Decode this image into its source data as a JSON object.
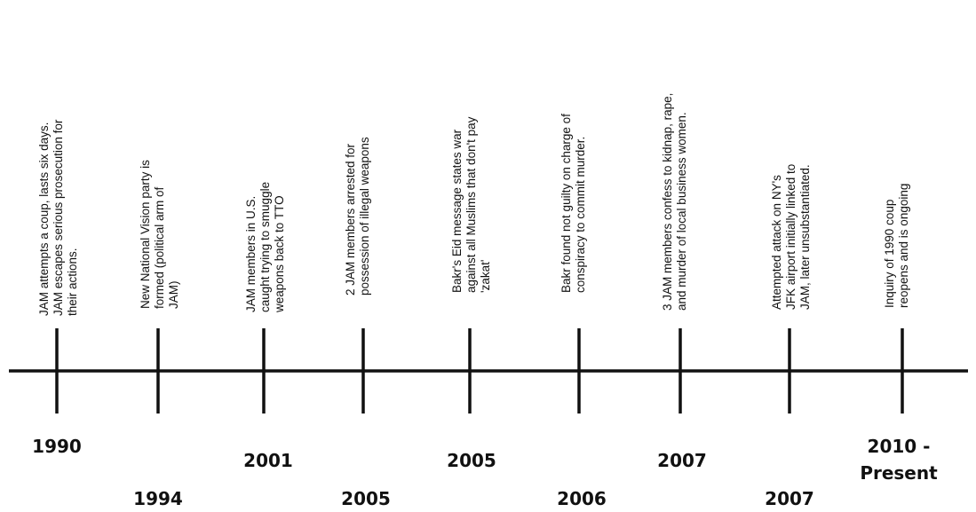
{
  "events": [
    {
      "year": "1990",
      "lines": [
        "JAM  attempts a coup, lasts six days.",
        "JAM escapes serious prosecution for",
        "their actions."
      ]
    },
    {
      "year": "1994",
      "lines": [
        "New National Vision party is",
        "formed (political arm of",
        "JAM)"
      ]
    },
    {
      "year": "2001",
      "lines": [
        "JAM members in U.S.",
        "caught trying to smuggle",
        "weapons back to TTO"
      ]
    },
    {
      "year": "2005",
      "lines": [
        "2 JAM members arrested for",
        "possession of illegal weapons"
      ]
    },
    {
      "year": "2005",
      "lines": [
        "Bakr's Eid message states war",
        "against all Muslims that don't pay",
        "'zakat'"
      ]
    },
    {
      "year": "2006",
      "lines": [
        "Bakr found not guilty on charge of",
        "conspiracy to commit murder."
      ]
    },
    {
      "year": "2007",
      "lines": [
        "3 JAM members confess to kidnap, rape,",
        "and murder of local business women."
      ]
    },
    {
      "year": "2007",
      "lines": [
        "Attempted attack on NY's",
        "JFK airport initially linked to",
        "JAM, later unsubstantiated."
      ]
    },
    {
      "year_lines": [
        "2010 -",
        "Present"
      ],
      "lines": [
        "Inquiry of 1990 coup",
        "reopens and is ongoing"
      ]
    }
  ]
}
